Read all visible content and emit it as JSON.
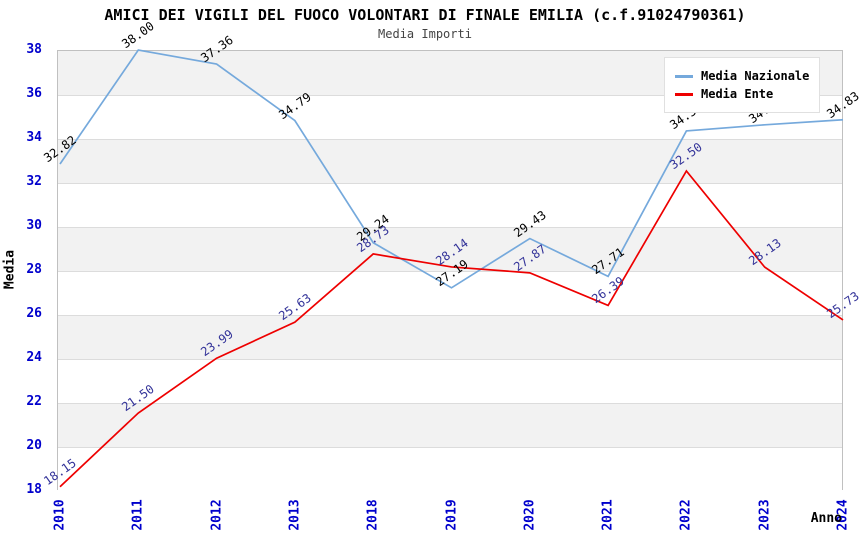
{
  "chart_data": {
    "type": "line",
    "title": "AMICI DEI VIGILI DEL FUOCO VOLONTARI DI FINALE EMILIA (c.f.91024790361)",
    "subtitle": "Media Importi",
    "xlabel": "Anno",
    "ylabel": "Media",
    "ylim": [
      18,
      38
    ],
    "ytick_step": 2,
    "yticks": [
      18,
      20,
      22,
      24,
      26,
      28,
      30,
      32,
      34,
      36,
      38
    ],
    "categories": [
      "2010",
      "2011",
      "2012",
      "2013",
      "2018",
      "2019",
      "2020",
      "2021",
      "2022",
      "2023",
      "2024"
    ],
    "series": [
      {
        "name": "Media Nazionale",
        "color": "#75a9dc",
        "label_color": "#000000",
        "values": [
          32.82,
          38.0,
          37.36,
          34.79,
          29.24,
          27.19,
          29.43,
          27.71,
          34.32,
          34.6,
          34.83
        ]
      },
      {
        "name": "Media Ente",
        "color": "#ee0000",
        "label_color": "#333399",
        "values": [
          18.15,
          21.5,
          23.99,
          25.63,
          28.73,
          28.14,
          27.87,
          26.39,
          32.5,
          28.13,
          25.73
        ]
      }
    ],
    "legend_position": "top-right",
    "grid": "horizontal-bands",
    "colors": {
      "tick_label": "#0000cc",
      "band_gray": "#f2f2f2",
      "gridline": "#dcdcdc",
      "plot_border": "#c0c0c0",
      "title": "#000000",
      "subtitle": "#444444"
    }
  }
}
